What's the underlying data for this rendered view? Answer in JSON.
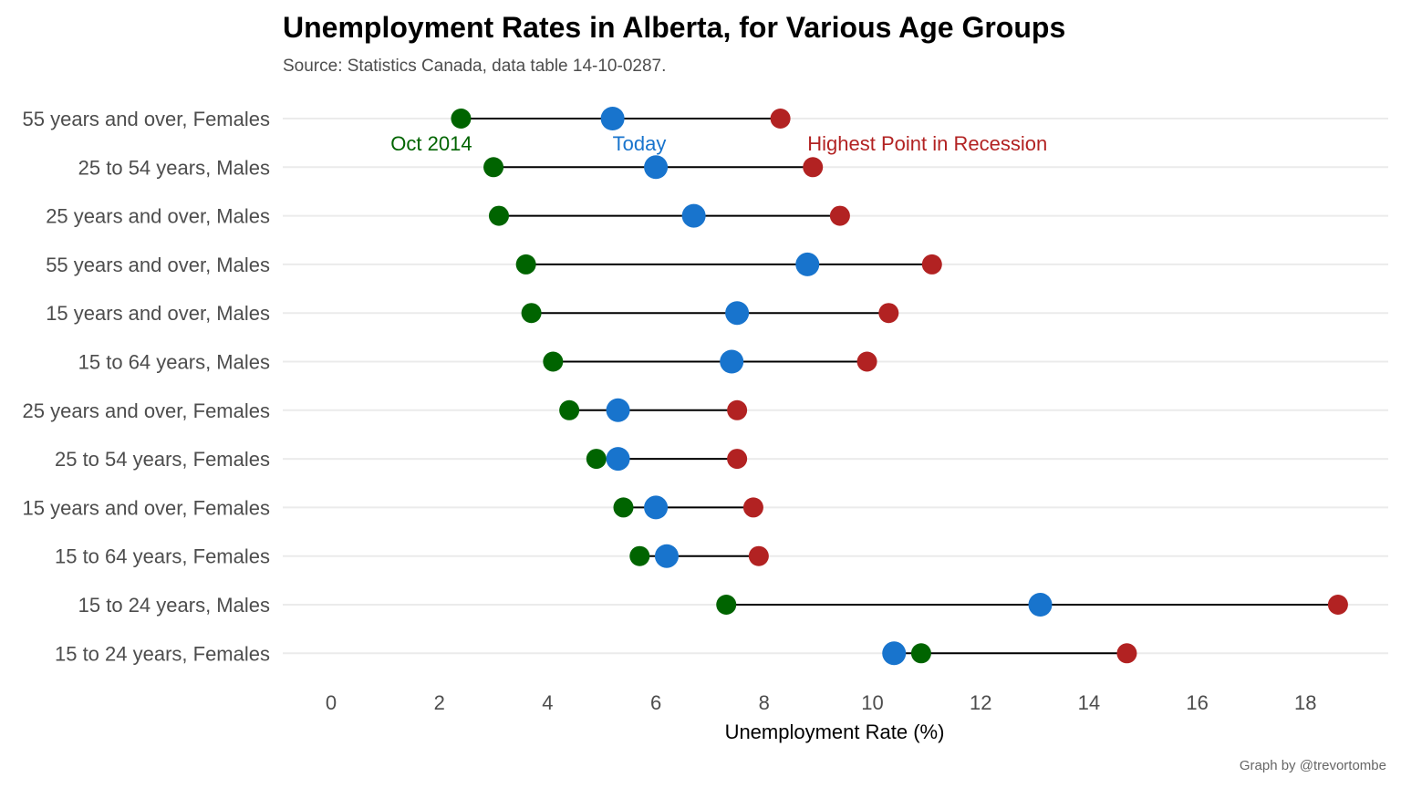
{
  "chart_data": {
    "type": "dumbbell",
    "title": "Unemployment Rates in Alberta, for Various Age Groups",
    "subtitle": "Source: Statistics Canada, data table 14-10-0287.",
    "caption": "Graph by @trevortombe",
    "xlabel": "Unemployment Rate (%)",
    "ylabel": "",
    "xlim": [
      0,
      19
    ],
    "xticks": [
      "0",
      "2",
      "4",
      "6",
      "8",
      "10",
      "12",
      "14",
      "16",
      "18"
    ],
    "grid": true,
    "categories": [
      "55 years and over, Females",
      "25 to 54 years, Males",
      "25 years and over, Males",
      "55 years and over, Males",
      "15 years and over, Males",
      "15 to 64 years, Males",
      "25 years and over, Females",
      "25 to 54 years, Females",
      "15 years and over, Females",
      "15 to 64 years, Females",
      "15 to 24 years, Males",
      "15 to 24 years, Females"
    ],
    "series": [
      {
        "name": "Oct 2014",
        "color": "#006400",
        "values": [
          2.4,
          3.0,
          3.1,
          3.6,
          3.7,
          4.1,
          4.4,
          4.9,
          5.4,
          5.7,
          7.3,
          10.9
        ]
      },
      {
        "name": "Today",
        "color": "#1874cd",
        "values": [
          5.2,
          6.0,
          6.7,
          8.8,
          7.5,
          7.4,
          5.3,
          5.3,
          6.0,
          6.2,
          13.1,
          10.4
        ]
      },
      {
        "name": "Highest Point in Recession",
        "color": "#b22222",
        "values": [
          8.3,
          8.9,
          9.4,
          11.1,
          10.3,
          9.9,
          7.5,
          7.5,
          7.8,
          7.9,
          18.6,
          14.7
        ]
      }
    ],
    "annotations": [
      {
        "text": "Oct 2014",
        "x": 1.1,
        "color": "#006400"
      },
      {
        "text": "Today",
        "x": 5.2,
        "color": "#1874cd"
      },
      {
        "text": "Highest Point in Recession",
        "x": 8.8,
        "color": "#b22222"
      }
    ]
  }
}
